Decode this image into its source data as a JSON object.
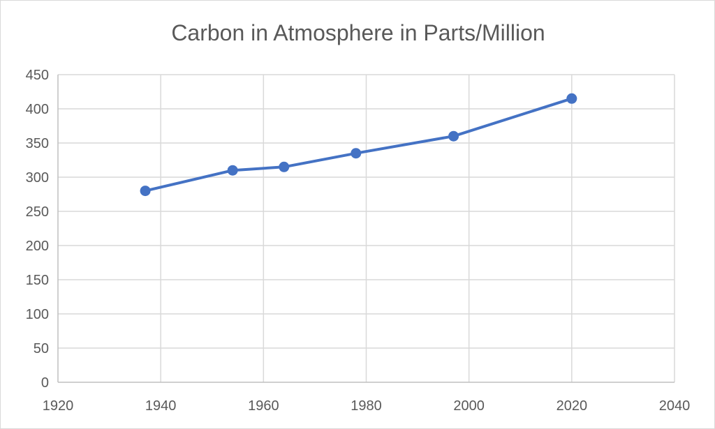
{
  "chart_data": {
    "type": "scatter",
    "title": "Carbon in Atmosphere in Parts/Million",
    "xlabel": "",
    "ylabel": "",
    "xlim": [
      1920,
      2040
    ],
    "ylim": [
      0,
      450
    ],
    "x_ticks": [
      1920,
      1940,
      1960,
      1980,
      2000,
      2020,
      2040
    ],
    "y_ticks": [
      0,
      50,
      100,
      150,
      200,
      250,
      300,
      350,
      400,
      450
    ],
    "grid": true,
    "legend": "none",
    "markers": true,
    "lines": true,
    "series": [
      {
        "color": "#4472c4",
        "x": [
          1937,
          1954,
          1964,
          1978,
          1997,
          2020
        ],
        "y": [
          280,
          310,
          315,
          335,
          360,
          415
        ]
      }
    ]
  }
}
